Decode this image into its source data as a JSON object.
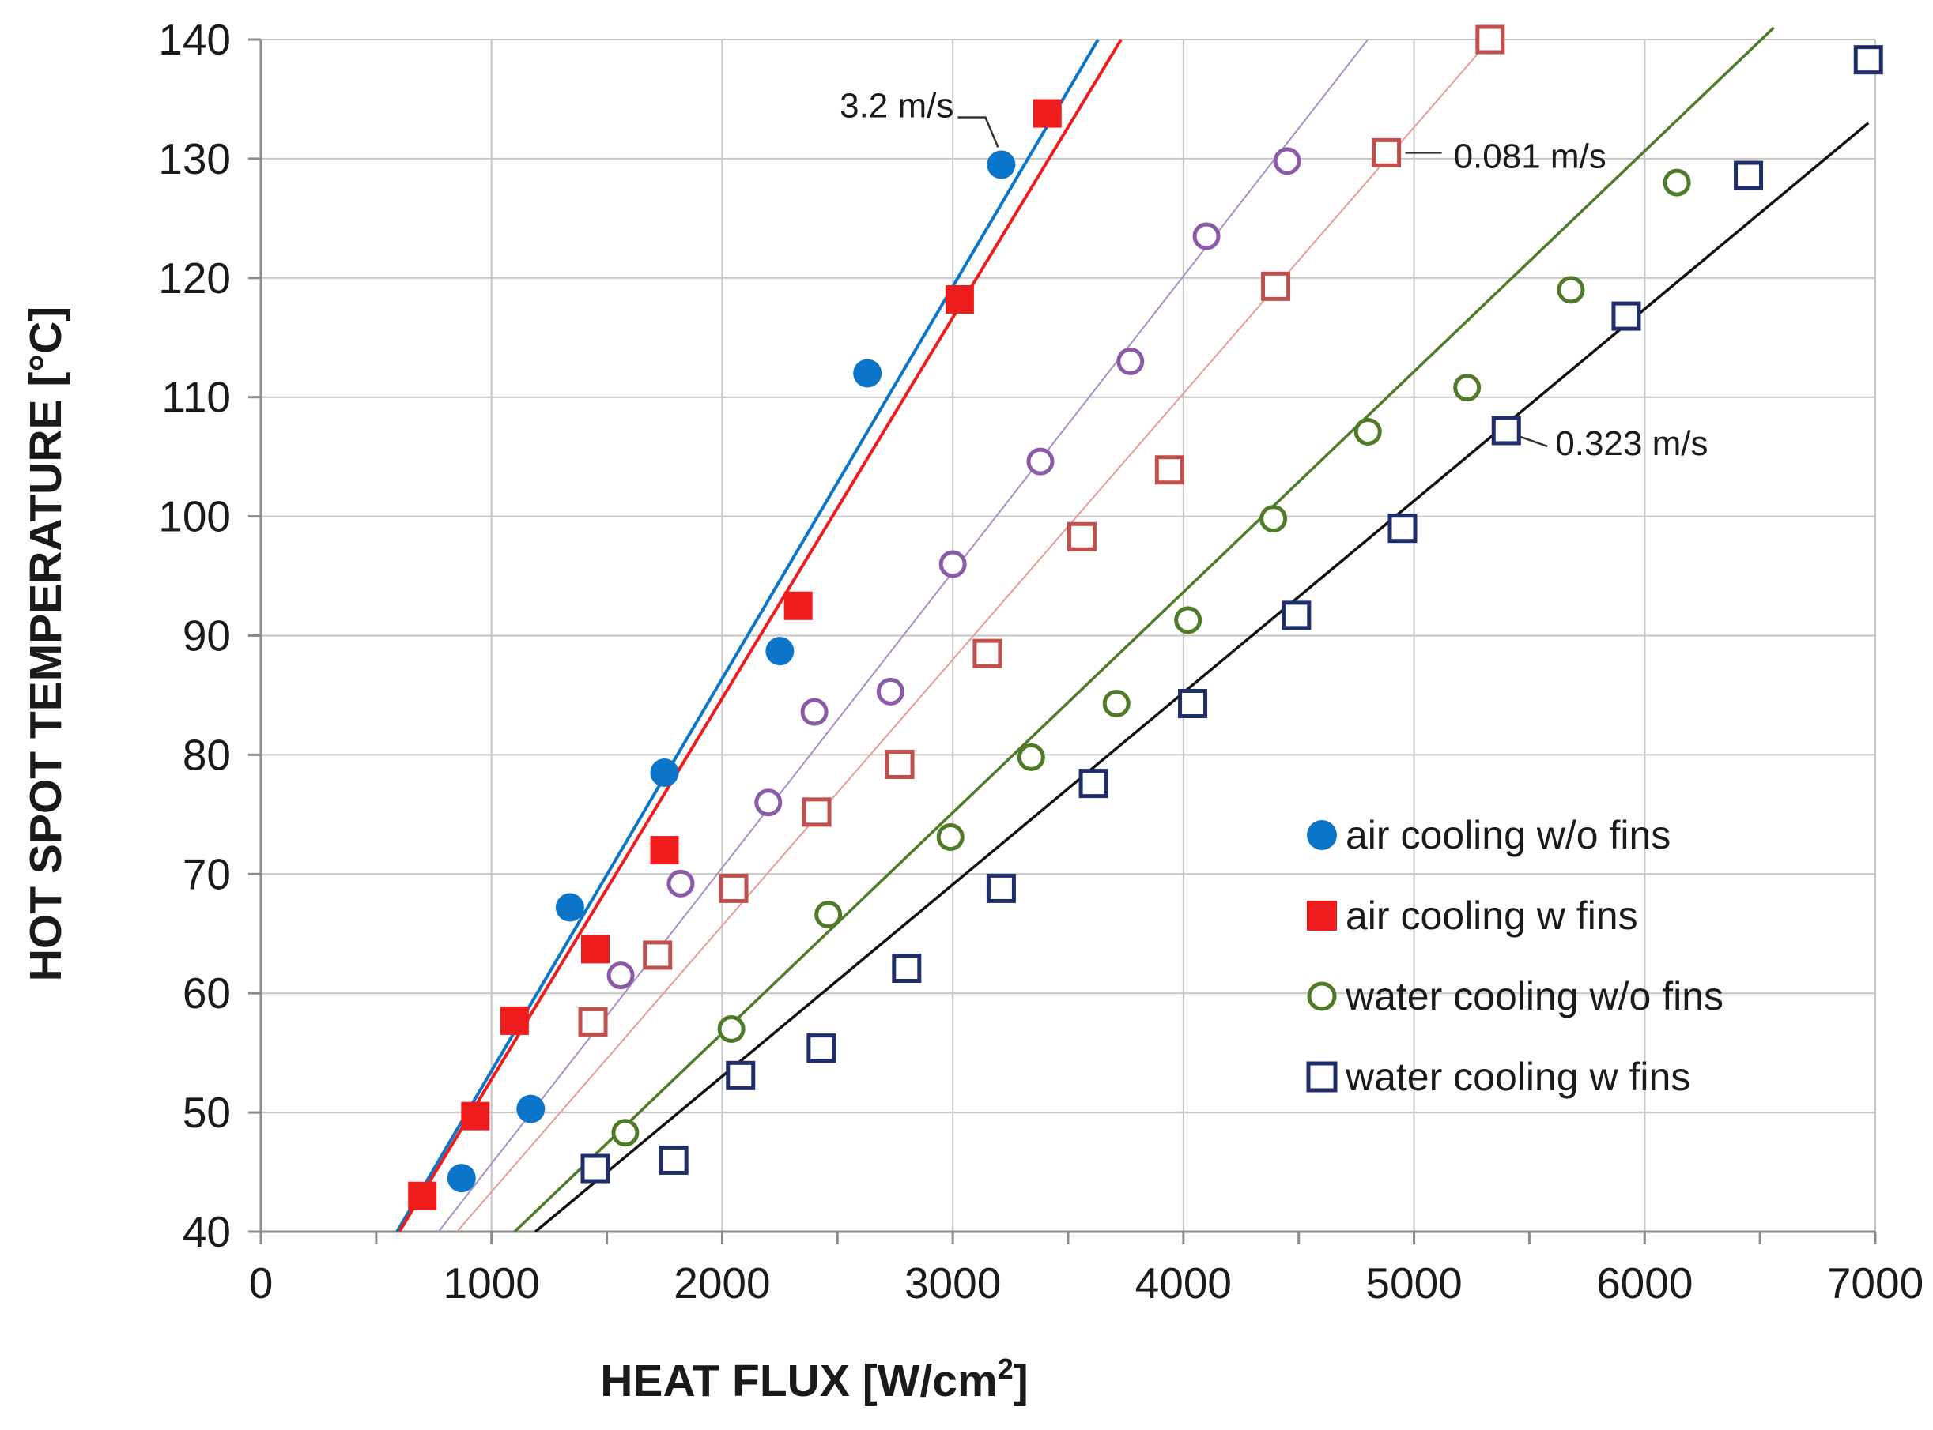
{
  "chart_data": {
    "type": "scatter",
    "title": "",
    "xlabel": "HEAT FLUX [W/cm",
    "xlabel_sup": "2",
    "xlabel_tail": "]",
    "ylabel": "HOT SPOT TEMPERATURE  [°C]",
    "xlim": [
      0,
      7000
    ],
    "ylim": [
      40,
      140
    ],
    "xticks": [
      0,
      1000,
      2000,
      3000,
      4000,
      5000,
      6000,
      7000
    ],
    "yticks": [
      40,
      50,
      60,
      70,
      80,
      90,
      100,
      110,
      120,
      130,
      140
    ],
    "x_minor_step": 500,
    "grid": true,
    "legend_position": "lower-right",
    "series": [
      {
        "name": "air cooling w/o fins",
        "marker": "filled-circle",
        "color": "#0b76c9",
        "points": [
          [
            870,
            44.5
          ],
          [
            1170,
            50.3
          ],
          [
            1340,
            67.2
          ],
          [
            1750,
            78.5
          ],
          [
            2250,
            88.7
          ],
          [
            2630,
            112
          ],
          [
            3210,
            129.5
          ]
        ],
        "fit": [
          [
            590,
            40
          ],
          [
            3630,
            140
          ]
        ]
      },
      {
        "name": "air cooling w fins",
        "marker": "filled-square",
        "color": "#ee1c1c",
        "points": [
          [
            700,
            43
          ],
          [
            930,
            49.7
          ],
          [
            1100,
            57.7
          ],
          [
            1450,
            63.7
          ],
          [
            1750,
            72
          ],
          [
            2330,
            92.5
          ],
          [
            3030,
            118.2
          ],
          [
            3410,
            133.8
          ]
        ],
        "fit": [
          [
            600,
            40
          ],
          [
            3730,
            140
          ]
        ]
      },
      {
        "name": "",
        "marker": "open-circle",
        "color": "#8a5aa8",
        "points": [
          [
            1560,
            61.5
          ],
          [
            1820,
            69.2
          ],
          [
            2200,
            76
          ],
          [
            2400,
            83.6
          ],
          [
            2730,
            85.3
          ],
          [
            3000,
            96
          ],
          [
            3380,
            104.6
          ],
          [
            3770,
            113
          ],
          [
            4100,
            123.5
          ],
          [
            4450,
            129.8
          ]
        ],
        "fit": [
          [
            770,
            40
          ],
          [
            4800,
            140
          ]
        ]
      },
      {
        "name": "",
        "marker": "open-square",
        "color": "#c0504d",
        "points": [
          [
            1440,
            57.6
          ],
          [
            1720,
            63.2
          ],
          [
            2050,
            68.8
          ],
          [
            2410,
            75.2
          ],
          [
            2770,
            79.2
          ],
          [
            3150,
            88.5
          ],
          [
            3560,
            98.3
          ],
          [
            3940,
            103.9
          ],
          [
            4400,
            119.3
          ],
          [
            4880,
            130.5
          ],
          [
            5330,
            140
          ]
        ],
        "fit": [
          [
            850,
            40
          ],
          [
            5330,
            140
          ]
        ]
      },
      {
        "name": "water cooling w/o fins",
        "marker": "open-circle",
        "color": "#4f7a28",
        "points": [
          [
            1580,
            48.3
          ],
          [
            2040,
            57
          ],
          [
            2460,
            66.6
          ],
          [
            2990,
            73.1
          ],
          [
            3340,
            79.8
          ],
          [
            3710,
            84.3
          ],
          [
            4020,
            91.3
          ],
          [
            4390,
            99.8
          ],
          [
            4800,
            107.1
          ],
          [
            5230,
            110.8
          ],
          [
            5680,
            119
          ],
          [
            6140,
            128
          ]
        ],
        "fit": [
          [
            1100,
            40
          ],
          [
            6560,
            141
          ]
        ]
      },
      {
        "name": "water cooling w fins",
        "marker": "open-square",
        "color": "#1f2d6b",
        "points": [
          [
            1450,
            45.3
          ],
          [
            1790,
            46
          ],
          [
            2080,
            53.1
          ],
          [
            2430,
            55.4
          ],
          [
            2800,
            62.1
          ],
          [
            3210,
            68.8
          ],
          [
            3610,
            77.6
          ],
          [
            4040,
            84.3
          ],
          [
            4490,
            91.7
          ],
          [
            4950,
            99
          ],
          [
            5400,
            107.2
          ],
          [
            5920,
            116.8
          ],
          [
            6450,
            128.6
          ],
          [
            6970,
            138.3
          ]
        ],
        "fit": [
          [
            1190,
            40
          ],
          [
            6970,
            133
          ]
        ]
      }
    ],
    "annotations": [
      {
        "text": "3.2 m/s",
        "x": 3210,
        "y": 129.5
      },
      {
        "text": "0.081 m/s",
        "x": 4880,
        "y": 130.5
      },
      {
        "text": "0.323 m/s",
        "x": 5400,
        "y": 107.2
      }
    ]
  }
}
